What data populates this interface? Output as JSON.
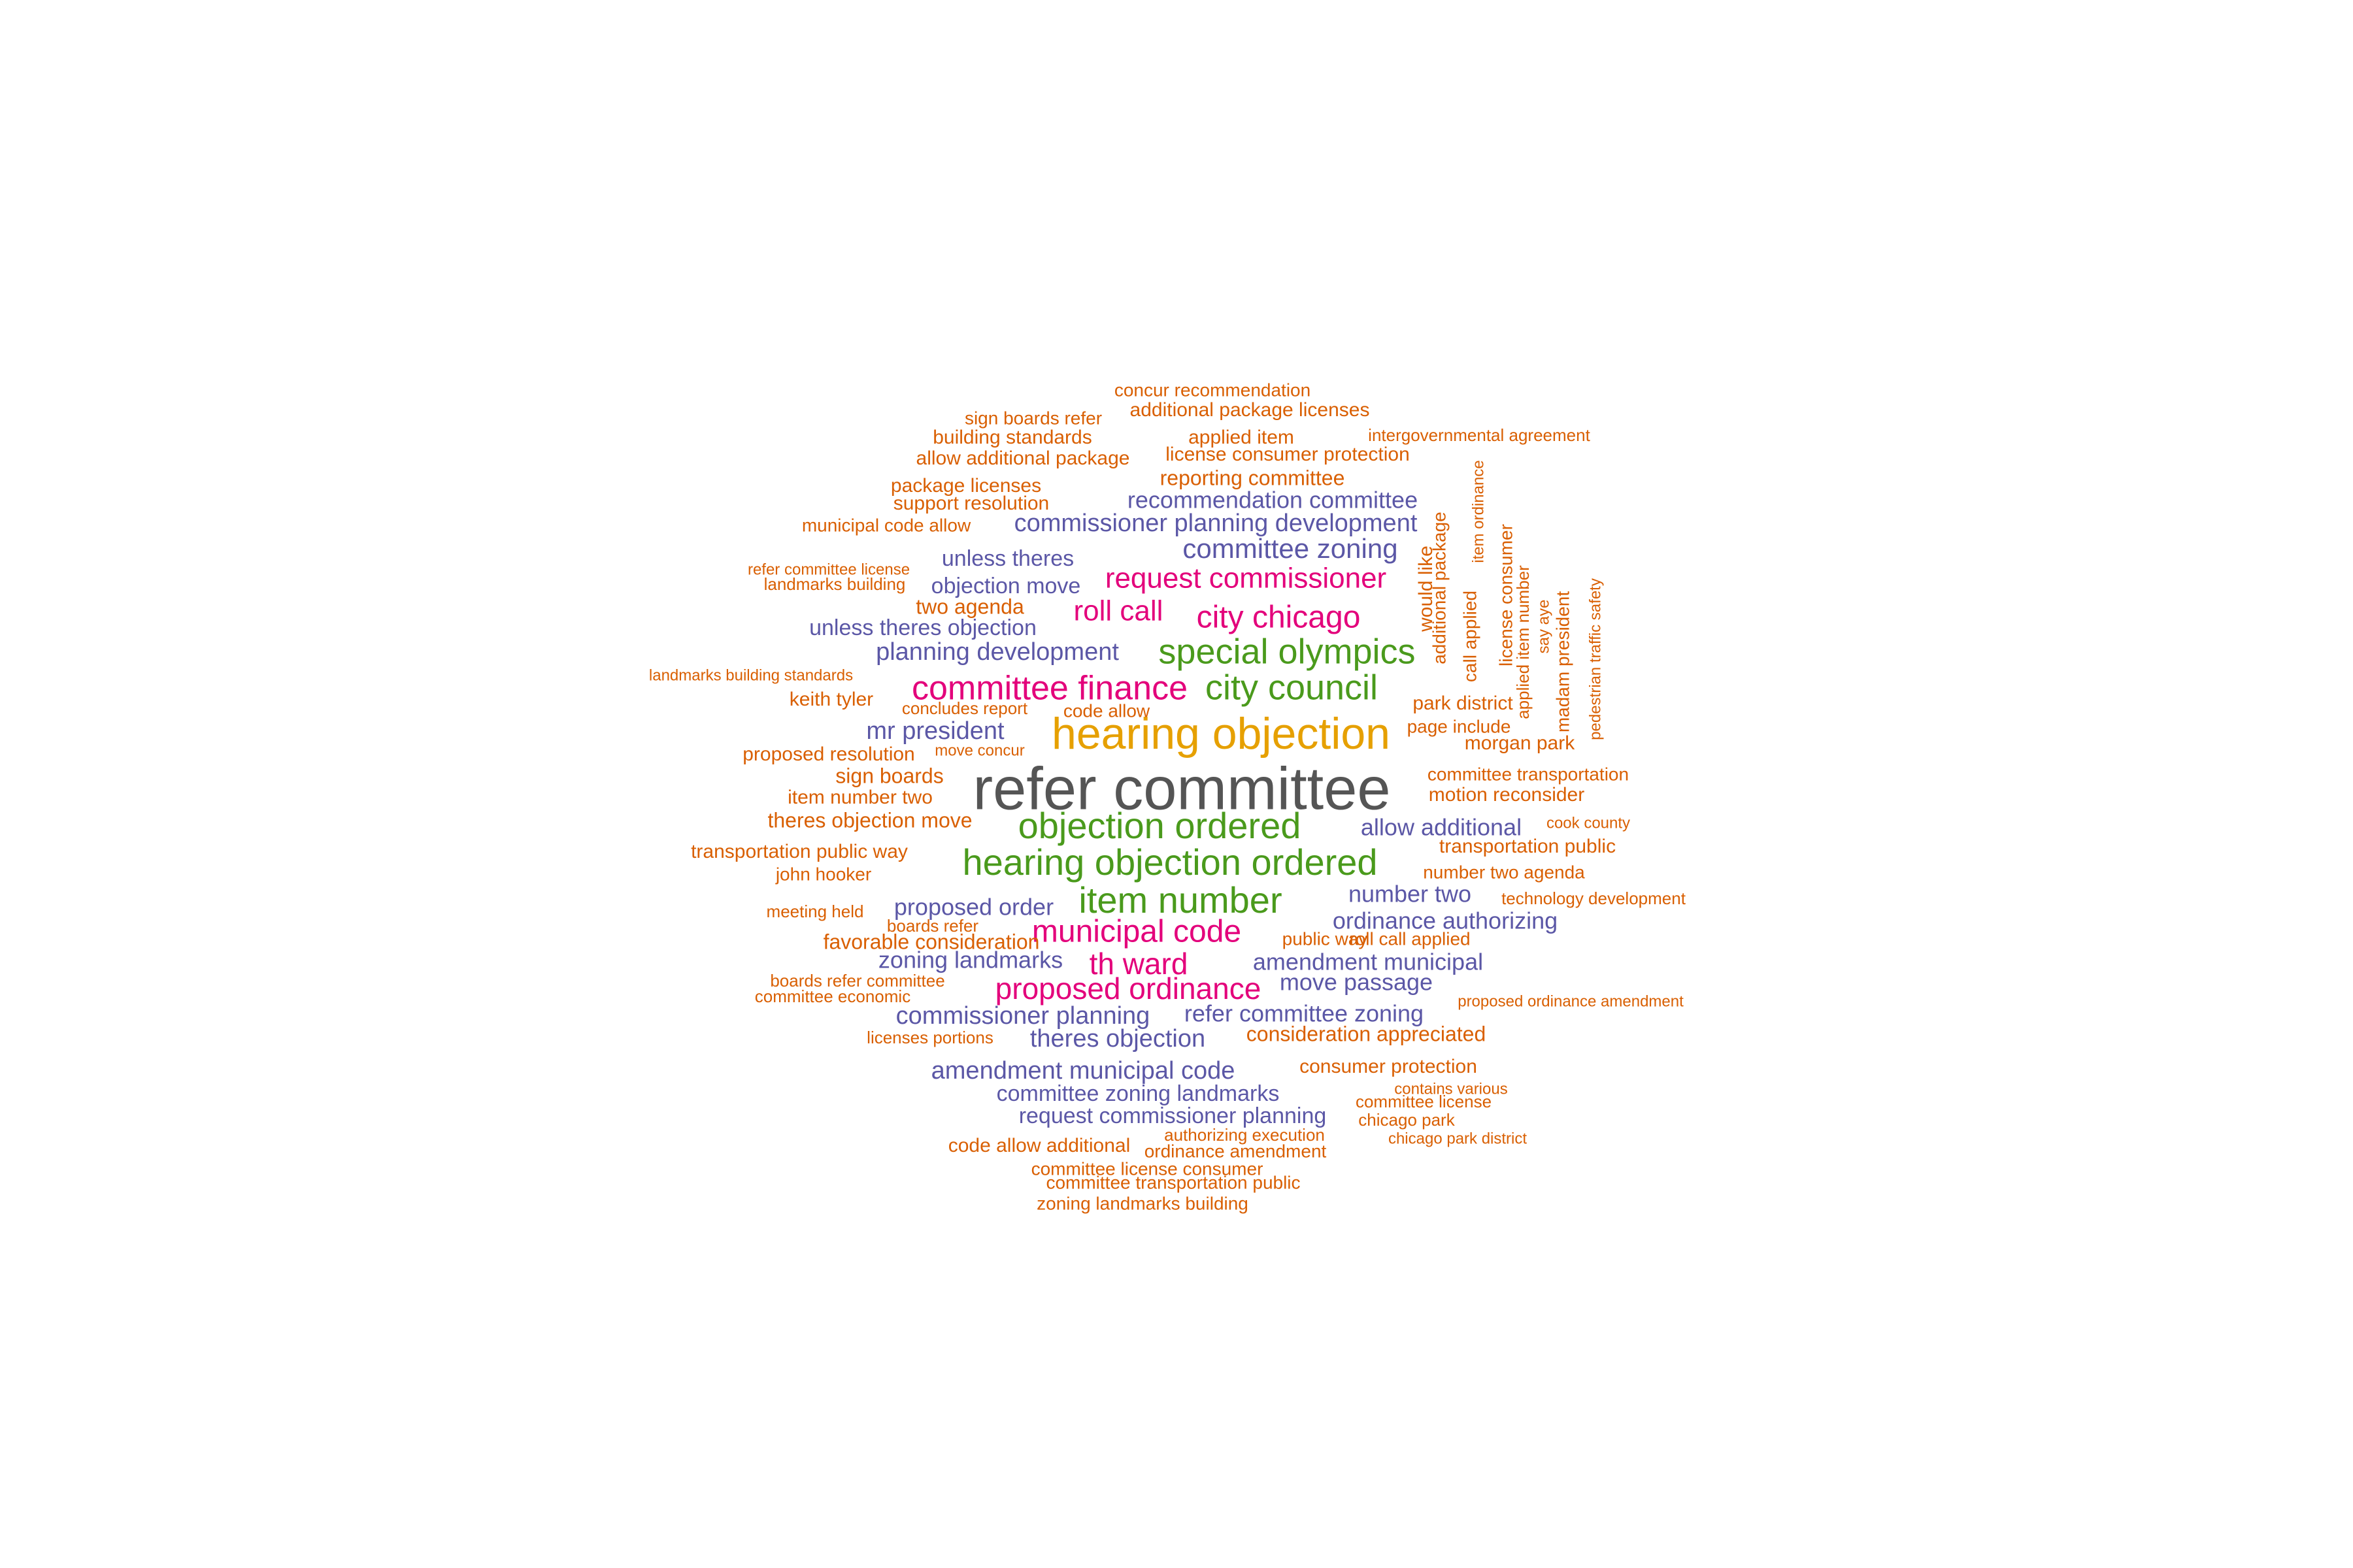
{
  "colors": {
    "gray": "#555555",
    "orange": "#E6A000",
    "green": "#4A9A1C",
    "magenta": "#E3007B",
    "purple": "#5B57A6",
    "rust": "#D95F02"
  },
  "words": [
    {
      "text": "refer committee",
      "color": "gray"
    },
    {
      "text": "hearing objection",
      "color": "orange"
    },
    {
      "text": "objection ordered",
      "color": "green"
    },
    {
      "text": "hearing objection ordered",
      "color": "green"
    },
    {
      "text": "item number",
      "color": "green"
    },
    {
      "text": "special olympics",
      "color": "green"
    },
    {
      "text": "city council",
      "color": "green"
    },
    {
      "text": "committee finance",
      "color": "magenta"
    },
    {
      "text": "municipal code",
      "color": "magenta"
    },
    {
      "text": "city chicago",
      "color": "magenta"
    },
    {
      "text": "th ward",
      "color": "magenta"
    },
    {
      "text": "proposed ordinance",
      "color": "magenta"
    },
    {
      "text": "request commissioner",
      "color": "magenta"
    },
    {
      "text": "roll call",
      "color": "magenta"
    },
    {
      "text": "commissioner planning development",
      "color": "purple"
    },
    {
      "text": "recommendation committee",
      "color": "purple"
    },
    {
      "text": "committee zoning",
      "color": "purple"
    },
    {
      "text": "unless theres",
      "color": "purple"
    },
    {
      "text": "objection move",
      "color": "purple"
    },
    {
      "text": "unless theres objection",
      "color": "purple"
    },
    {
      "text": "planning development",
      "color": "purple"
    },
    {
      "text": "mr president",
      "color": "purple"
    },
    {
      "text": "allow additional",
      "color": "purple"
    },
    {
      "text": "proposed order",
      "color": "purple"
    },
    {
      "text": "number two",
      "color": "purple"
    },
    {
      "text": "ordinance authorizing",
      "color": "purple"
    },
    {
      "text": "zoning landmarks",
      "color": "purple"
    },
    {
      "text": "amendment municipal",
      "color": "purple"
    },
    {
      "text": "move passage",
      "color": "purple"
    },
    {
      "text": "commissioner planning",
      "color": "purple"
    },
    {
      "text": "refer committee zoning",
      "color": "purple"
    },
    {
      "text": "theres objection",
      "color": "purple"
    },
    {
      "text": "amendment municipal code",
      "color": "purple"
    },
    {
      "text": "committee zoning landmarks",
      "color": "purple"
    },
    {
      "text": "request commissioner planning",
      "color": "purple"
    },
    {
      "text": "concur recommendation",
      "color": "rust"
    },
    {
      "text": "additional package licenses",
      "color": "rust"
    },
    {
      "text": "sign boards refer",
      "color": "rust"
    },
    {
      "text": "building standards",
      "color": "rust"
    },
    {
      "text": "applied item",
      "color": "rust"
    },
    {
      "text": "intergovernmental agreement",
      "color": "rust"
    },
    {
      "text": "allow additional package",
      "color": "rust"
    },
    {
      "text": "license consumer protection",
      "color": "rust"
    },
    {
      "text": "reporting committee",
      "color": "rust"
    },
    {
      "text": "package licenses",
      "color": "rust"
    },
    {
      "text": "support resolution",
      "color": "rust"
    },
    {
      "text": "municipal code allow",
      "color": "rust"
    },
    {
      "text": "refer committee license",
      "color": "rust"
    },
    {
      "text": "landmarks building",
      "color": "rust"
    },
    {
      "text": "two agenda",
      "color": "rust"
    },
    {
      "text": "landmarks building standards",
      "color": "rust"
    },
    {
      "text": "keith tyler",
      "color": "rust"
    },
    {
      "text": "concludes report",
      "color": "rust"
    },
    {
      "text": "code allow",
      "color": "rust"
    },
    {
      "text": "park district",
      "color": "rust"
    },
    {
      "text": "page include",
      "color": "rust"
    },
    {
      "text": "morgan park",
      "color": "rust"
    },
    {
      "text": "proposed resolution",
      "color": "rust"
    },
    {
      "text": "move concur",
      "color": "rust"
    },
    {
      "text": "sign boards",
      "color": "rust"
    },
    {
      "text": "committee transportation",
      "color": "rust"
    },
    {
      "text": "item number two",
      "color": "rust"
    },
    {
      "text": "motion reconsider",
      "color": "rust"
    },
    {
      "text": "theres objection move",
      "color": "rust"
    },
    {
      "text": "cook county",
      "color": "rust"
    },
    {
      "text": "transportation public way",
      "color": "rust"
    },
    {
      "text": "transportation public",
      "color": "rust"
    },
    {
      "text": "john hooker",
      "color": "rust"
    },
    {
      "text": "number two agenda",
      "color": "rust"
    },
    {
      "text": "technology development",
      "color": "rust"
    },
    {
      "text": "meeting held",
      "color": "rust"
    },
    {
      "text": "boards refer",
      "color": "rust"
    },
    {
      "text": "favorable consideration",
      "color": "rust"
    },
    {
      "text": "public way",
      "color": "rust"
    },
    {
      "text": "roll call applied",
      "color": "rust"
    },
    {
      "text": "boards refer committee",
      "color": "rust"
    },
    {
      "text": "committee economic",
      "color": "rust"
    },
    {
      "text": "proposed ordinance amendment",
      "color": "rust"
    },
    {
      "text": "licenses portions",
      "color": "rust"
    },
    {
      "text": "consideration appreciated",
      "color": "rust"
    },
    {
      "text": "consumer protection",
      "color": "rust"
    },
    {
      "text": "contains various",
      "color": "rust"
    },
    {
      "text": "committee license",
      "color": "rust"
    },
    {
      "text": "chicago park",
      "color": "rust"
    },
    {
      "text": "authorizing execution",
      "color": "rust"
    },
    {
      "text": "chicago park district",
      "color": "rust"
    },
    {
      "text": "code allow additional",
      "color": "rust"
    },
    {
      "text": "ordinance amendment",
      "color": "rust"
    },
    {
      "text": "committee license consumer",
      "color": "rust"
    },
    {
      "text": "committee transportation public",
      "color": "rust"
    },
    {
      "text": "zoning landmarks building",
      "color": "rust"
    },
    {
      "text": "would like",
      "color": "rust"
    },
    {
      "text": "additional package",
      "color": "rust"
    },
    {
      "text": "item ordinance",
      "color": "rust"
    },
    {
      "text": "call applied",
      "color": "rust"
    },
    {
      "text": "license consumer",
      "color": "rust"
    },
    {
      "text": "applied item number",
      "color": "rust"
    },
    {
      "text": "say aye",
      "color": "rust"
    },
    {
      "text": "madam president",
      "color": "rust"
    },
    {
      "text": "pedestrian traffic safety",
      "color": "rust"
    }
  ]
}
